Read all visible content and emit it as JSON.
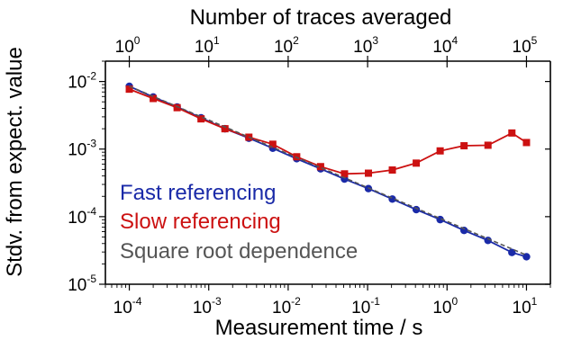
{
  "chart_data": {
    "type": "line",
    "xlabel": "Measurement time / s",
    "ylabel": "Stdv. from expect. value",
    "x2label": "Number of traces averaged",
    "xscale": "log",
    "yscale": "log",
    "xlim": [
      5e-05,
      20
    ],
    "ylim": [
      1e-05,
      0.02
    ],
    "x2_tick_values": [
      0,
      1,
      2,
      3,
      4,
      5
    ],
    "grid": false,
    "legend_placement": "lower-left",
    "series": [
      {
        "name": "Fast referencing",
        "color": "#1a2aa8",
        "marker": "circle",
        "x": [
          0.0001,
          0.0002,
          0.0004,
          0.0008,
          0.0016,
          0.0032,
          0.0064,
          0.0128,
          0.0256,
          0.0512,
          0.1024,
          0.2048,
          0.4096,
          0.8192,
          1.6384,
          3.2768,
          6.5536,
          10.0
        ],
        "y": [
          0.0085,
          0.0059,
          0.0042,
          0.0029,
          0.002,
          0.00145,
          0.00103,
          0.00072,
          0.00051,
          0.00036,
          0.00026,
          0.000182,
          0.000127,
          9.05e-05,
          6.25e-05,
          4.45e-05,
          2.95e-05,
          2.55e-05
        ]
      },
      {
        "name": "Slow referencing",
        "color": "#cc1111",
        "marker": "square",
        "x": [
          0.0001,
          0.0002,
          0.0004,
          0.0008,
          0.0016,
          0.0032,
          0.0064,
          0.0128,
          0.0256,
          0.0512,
          0.1024,
          0.2048,
          0.4096,
          0.8192,
          1.6384,
          3.2768,
          6.5536,
          10.0
        ],
        "y": [
          0.0077,
          0.0056,
          0.0041,
          0.0028,
          0.002,
          0.0015,
          0.00118,
          0.00077,
          0.00055,
          0.00043,
          0.00044,
          0.00049,
          0.00062,
          0.00094,
          0.00112,
          0.00114,
          0.00173,
          0.00125
        ]
      },
      {
        "name": "Square root dependence",
        "color": "#555555",
        "style": "dashed",
        "x": [
          0.0001,
          10.0
        ],
        "y": [
          0.0085,
          2.69e-05
        ]
      }
    ]
  }
}
